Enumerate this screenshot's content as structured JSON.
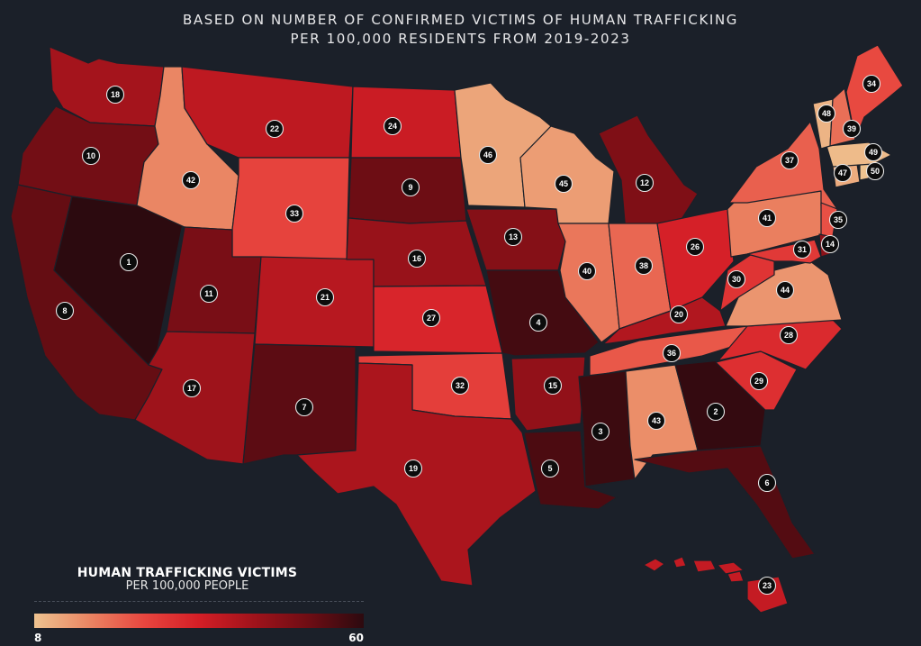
{
  "header": {
    "line1": "BASED ON NUMBER OF CONFIRMED VICTIMS OF HUMAN TRAFFICKING",
    "line2": "PER 100,000 RESIDENTS FROM 2019-2023"
  },
  "legend": {
    "title": "HUMAN TRAFFICKING VICTIMS",
    "subtitle": "PER 100,000 PEOPLE",
    "min_label": "8",
    "max_label": "60",
    "min": 8,
    "max": 60,
    "colors": [
      "#eec390",
      "#ea8563",
      "#e8463f",
      "#d41e26",
      "#a0131b",
      "#6e0d14",
      "#2c0a0f"
    ]
  },
  "rank_range": [
    1,
    50
  ],
  "map_colors": {
    "background": "#1b2029",
    "marker_fill": "#0c0c0c",
    "marker_stroke": "#e9e9e9",
    "marker_text": "#ffffff"
  },
  "states": [
    {
      "code": "WA",
      "rank": 18
    },
    {
      "code": "OR",
      "rank": 10
    },
    {
      "code": "CA",
      "rank": 8
    },
    {
      "code": "NV",
      "rank": 1
    },
    {
      "code": "ID",
      "rank": 42
    },
    {
      "code": "MT",
      "rank": 22
    },
    {
      "code": "WY",
      "rank": 33
    },
    {
      "code": "UT",
      "rank": 11
    },
    {
      "code": "AZ",
      "rank": 17
    },
    {
      "code": "CO",
      "rank": 21
    },
    {
      "code": "NM",
      "rank": 7
    },
    {
      "code": "ND",
      "rank": 24
    },
    {
      "code": "SD",
      "rank": 9
    },
    {
      "code": "NE",
      "rank": 16
    },
    {
      "code": "KS",
      "rank": 27
    },
    {
      "code": "OK",
      "rank": 32
    },
    {
      "code": "TX",
      "rank": 19
    },
    {
      "code": "MN",
      "rank": 46
    },
    {
      "code": "IA",
      "rank": 13
    },
    {
      "code": "MO",
      "rank": 4
    },
    {
      "code": "AR",
      "rank": 15
    },
    {
      "code": "LA",
      "rank": 5
    },
    {
      "code": "WI",
      "rank": 45
    },
    {
      "code": "IL",
      "rank": 40
    },
    {
      "code": "MI",
      "rank": 12
    },
    {
      "code": "IN",
      "rank": 38
    },
    {
      "code": "OH",
      "rank": 26
    },
    {
      "code": "KY",
      "rank": 20
    },
    {
      "code": "TN",
      "rank": 36
    },
    {
      "code": "MS",
      "rank": 3
    },
    {
      "code": "AL",
      "rank": 43
    },
    {
      "code": "GA",
      "rank": 2
    },
    {
      "code": "FL",
      "rank": 6
    },
    {
      "code": "SC",
      "rank": 29
    },
    {
      "code": "NC",
      "rank": 28
    },
    {
      "code": "VA",
      "rank": 44
    },
    {
      "code": "WV",
      "rank": 30
    },
    {
      "code": "PA",
      "rank": 41
    },
    {
      "code": "NY",
      "rank": 37
    },
    {
      "code": "NJ",
      "rank": 35
    },
    {
      "code": "DE",
      "rank": 14
    },
    {
      "code": "MD",
      "rank": 31
    },
    {
      "code": "CT",
      "rank": 47
    },
    {
      "code": "RI",
      "rank": 50
    },
    {
      "code": "MA",
      "rank": 49
    },
    {
      "code": "VT",
      "rank": 48
    },
    {
      "code": "NH",
      "rank": 39
    },
    {
      "code": "ME",
      "rank": 34
    },
    {
      "code": "HI",
      "rank": 23
    }
  ]
}
